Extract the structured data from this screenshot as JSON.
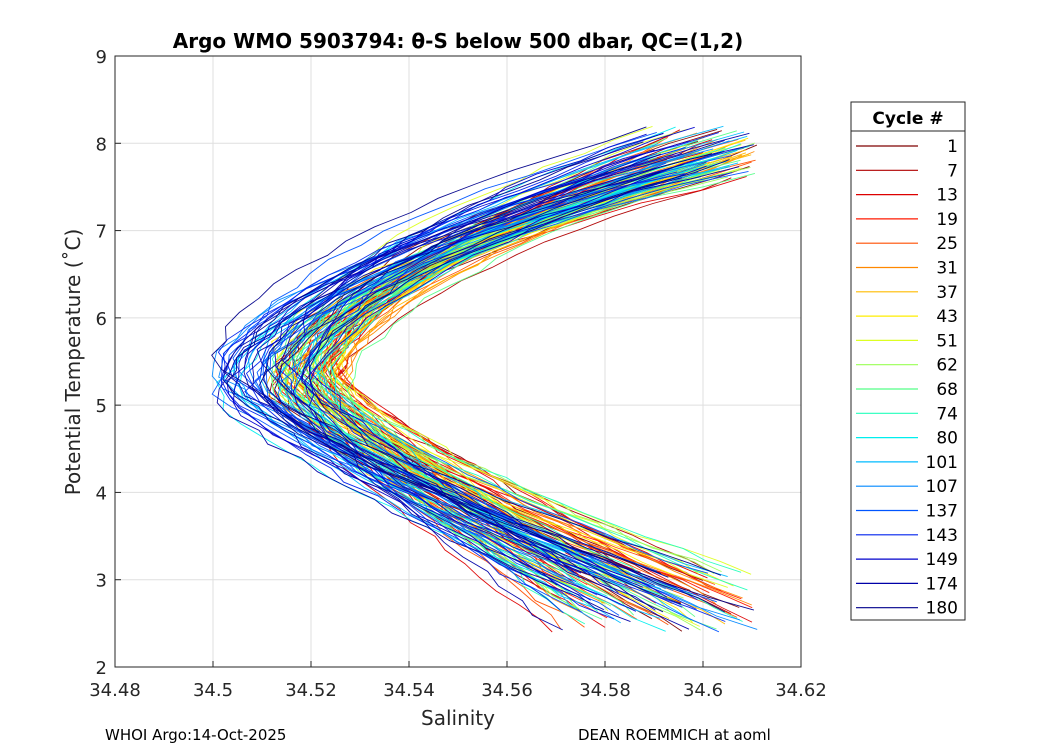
{
  "chart_data": {
    "type": "line",
    "title": "Argo WMO 5903794: θ-S below 500 dbar,  QC=(1,2)",
    "xlabel": "Salinity",
    "ylabel": "Potential Temperature (˚C)",
    "xlim": [
      34.48,
      34.62
    ],
    "ylim": [
      2,
      9
    ],
    "x_ticks": [
      "34.48",
      "34.5",
      "34.52",
      "34.54",
      "34.56",
      "34.58",
      "34.6",
      "34.62"
    ],
    "y_ticks": [
      "2",
      "3",
      "4",
      "5",
      "6",
      "7",
      "8",
      "9"
    ],
    "grid": true,
    "legend": {
      "title": "Cycle #",
      "placement": "right outside",
      "entries": [
        {
          "label": "1",
          "color": "#7f0000"
        },
        {
          "label": "7",
          "color": "#b00000"
        },
        {
          "label": "13",
          "color": "#dd0000"
        },
        {
          "label": "19",
          "color": "#ff1a00"
        },
        {
          "label": "25",
          "color": "#ff4f00"
        },
        {
          "label": "31",
          "color": "#ff8800"
        },
        {
          "label": "37",
          "color": "#ffbb00"
        },
        {
          "label": "43",
          "color": "#ffee00"
        },
        {
          "label": "51",
          "color": "#ddff22"
        },
        {
          "label": "62",
          "color": "#99ff55"
        },
        {
          "label": "68",
          "color": "#55ff88"
        },
        {
          "label": "74",
          "color": "#22ffbb"
        },
        {
          "label": "80",
          "color": "#00eeee"
        },
        {
          "label": "101",
          "color": "#00bbff"
        },
        {
          "label": "107",
          "color": "#0088ff"
        },
        {
          "label": "137",
          "color": "#0055ff"
        },
        {
          "label": "143",
          "color": "#0022ee"
        },
        {
          "label": "149",
          "color": "#0000cc"
        },
        {
          "label": "174",
          "color": "#0000a8"
        },
        {
          "label": "180",
          "color": "#00008b"
        }
      ]
    },
    "series_shape": {
      "shallow_end": {
        "theta": [
          7.6,
          8.2
        ],
        "salinity": [
          34.59,
          34.614
        ]
      },
      "salinity_minimum": {
        "theta": [
          4.9,
          5.6
        ],
        "salinity": [
          34.499,
          34.529
        ]
      },
      "deep_end": {
        "theta": [
          2.4,
          3.1
        ],
        "salinity": [
          34.57,
          34.611
        ]
      }
    }
  },
  "footer": {
    "left": "WHOI Argo:14-Oct-2025",
    "right": "DEAN ROEMMICH at aoml"
  }
}
